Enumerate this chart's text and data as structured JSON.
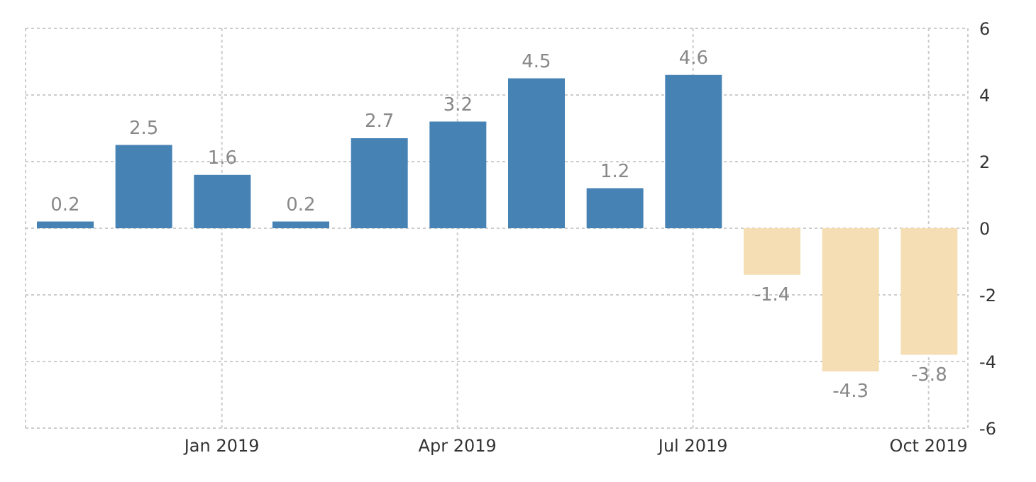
{
  "chart_data": {
    "type": "bar",
    "categories": [
      null,
      null,
      "Jan 2019",
      null,
      null,
      "Apr 2019",
      null,
      null,
      "Jul 2019",
      null,
      null,
      "Oct 2019"
    ],
    "values": [
      0.2,
      2.5,
      1.6,
      0.2,
      2.7,
      3.2,
      4.5,
      1.2,
      4.6,
      -1.4,
      -4.3,
      -3.8
    ],
    "colors": [
      "#4682b4",
      "#4682b4",
      "#4682b4",
      "#4682b4",
      "#4682b4",
      "#4682b4",
      "#4682b4",
      "#4682b4",
      "#4682b4",
      "#f5deb3",
      "#f5deb3",
      "#f5deb3"
    ],
    "ylim": [
      -6,
      6
    ],
    "yticks": [
      -6,
      -4,
      -2,
      0,
      2,
      4,
      6
    ],
    "grid": true,
    "data_labels": true
  }
}
